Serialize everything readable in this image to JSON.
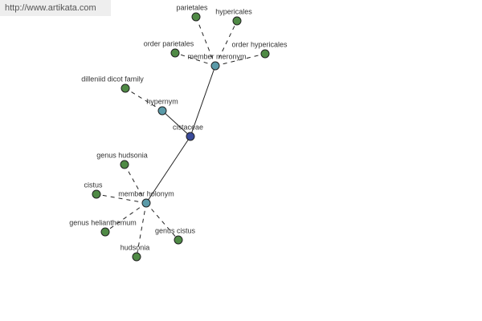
{
  "watermark": "http://www.artikata.com",
  "nodes": [
    {
      "label": "cistaceae"
    },
    {
      "label": "hypernym"
    },
    {
      "label": "member meronym"
    },
    {
      "label": "member holonym"
    },
    {
      "label": "dilleniid dicot family"
    },
    {
      "label": "parietales"
    },
    {
      "label": "hypericales"
    },
    {
      "label": "order parietales"
    },
    {
      "label": "order hypericales"
    },
    {
      "label": "genus hudsonia"
    },
    {
      "label": "cistus"
    },
    {
      "label": "genus helianthemum"
    },
    {
      "label": "hudsonia"
    },
    {
      "label": "genus cistus"
    }
  ]
}
